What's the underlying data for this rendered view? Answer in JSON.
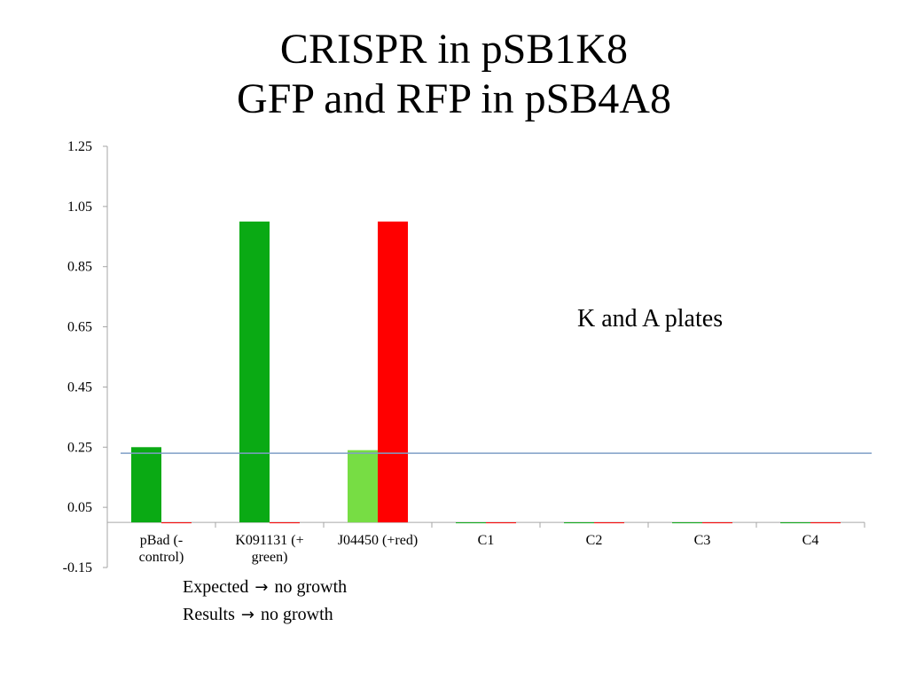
{
  "slide": {
    "title_line1": "CRISPR in pSB1K8",
    "title_line2": "GFP and RFP in pSB4A8"
  },
  "annotation": "K and A plates",
  "notes": [
    {
      "lead": "Expected",
      "arrow": "→",
      "tail": "no growth"
    },
    {
      "lead": "Results",
      "arrow": "→",
      "tail": "no growth"
    }
  ],
  "colors": {
    "series1": "#0aaa14",
    "series1_light": "#77dd44",
    "series2": "#ff0000",
    "reference_line": "#7f9fc6",
    "axis": "#a6a6a6"
  },
  "chart_data": {
    "type": "bar",
    "categories": [
      "pBad (-\ncontrol)",
      "K091131 (+\ngreen)",
      "J04450 (+red)",
      "C1",
      "C2",
      "C3",
      "C4"
    ],
    "series": [
      {
        "values": [
          0.25,
          1.0,
          0.24,
          0,
          0,
          0,
          0
        ]
      },
      {
        "values": [
          0.0,
          0.0,
          1.0,
          0,
          0,
          0,
          0
        ]
      }
    ],
    "ylim": [
      -0.15,
      1.25
    ],
    "yticks": [
      "1.25",
      "1.05",
      "0.85",
      "0.65",
      "0.45",
      "0.25",
      "0.05",
      "-0.15"
    ],
    "reference_line": 0.23,
    "grid": false
  }
}
